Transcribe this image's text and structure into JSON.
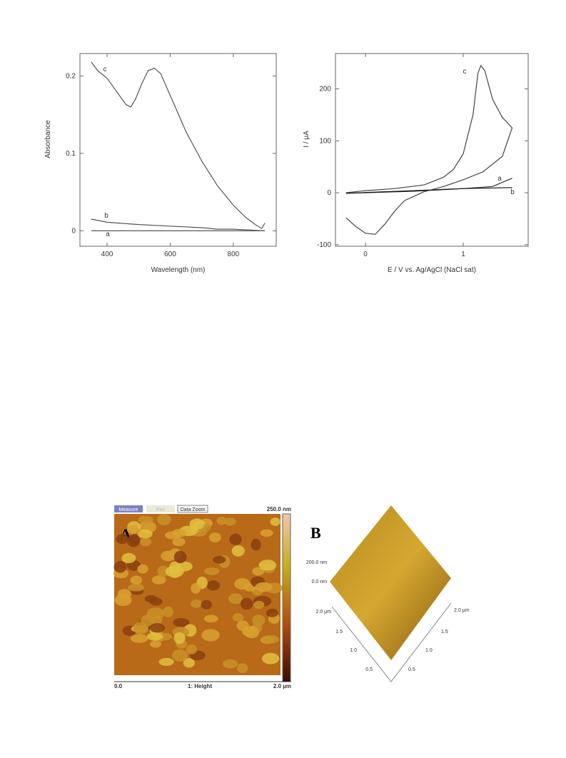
{
  "chart_data": [
    {
      "type": "line",
      "x_label": "Wavelength (nm)",
      "y_label": "Absorbance",
      "xlim": [
        314,
        936
      ],
      "ylim": [
        -0.02,
        0.229
      ],
      "xticks": [
        400,
        600,
        800
      ],
      "yticks": [
        0,
        0.1,
        0.2
      ],
      "series": [
        {
          "name": "a",
          "color": "#444444",
          "x": [
            350,
            900
          ],
          "values": [
            0,
            0
          ]
        },
        {
          "name": "b",
          "color": "#555555",
          "x": [
            350,
            400,
            500,
            600,
            700,
            750,
            800,
            850,
            900
          ],
          "values": [
            0.015,
            0.011,
            0.008,
            0.006,
            0.004,
            0.002,
            0.002,
            0.001,
            0
          ]
        },
        {
          "name": "c",
          "color": "#555555",
          "x": [
            350,
            370,
            400,
            430,
            460,
            475,
            490,
            510,
            530,
            550,
            570,
            600,
            650,
            700,
            750,
            800,
            840,
            870,
            890,
            900
          ],
          "values": [
            0.218,
            0.207,
            0.197,
            0.18,
            0.163,
            0.16,
            0.17,
            0.19,
            0.207,
            0.21,
            0.203,
            0.175,
            0.128,
            0.09,
            0.058,
            0.033,
            0.017,
            0.008,
            0.003,
            0.01
          ]
        }
      ]
    },
    {
      "type": "line",
      "x_label": "E / V vs. Ag/AgCl (NaCl sat)",
      "y_label": "I / μA",
      "xlim": [
        -0.307,
        1.664
      ],
      "ylim": [
        -103,
        268
      ],
      "xticks": [
        0,
        1
      ],
      "yticks": [
        -100,
        0,
        100,
        200
      ],
      "series": [
        {
          "name": "a",
          "color": "#333333",
          "x": [
            -0.2,
            0.5,
            1.0,
            1.3,
            1.5
          ],
          "values": [
            -1,
            3,
            8,
            12,
            28
          ]
        },
        {
          "name": "b",
          "color": "#111111",
          "x": [
            -0.2,
            0.5,
            1.0,
            1.5
          ],
          "values": [
            -1,
            4,
            8,
            10
          ]
        },
        {
          "name": "c",
          "color": "#444444",
          "x": [
            -0.2,
            0,
            0.3,
            0.6,
            0.8,
            0.9,
            1.0,
            1.1,
            1.15,
            1.18,
            1.22,
            1.3,
            1.4,
            1.5,
            1.5,
            1.4,
            1.2,
            1.0,
            0.8,
            0.6,
            0.4,
            0.3,
            0.2,
            0.1,
            0,
            -0.1,
            -0.2
          ],
          "values": [
            0,
            4,
            8,
            15,
            30,
            45,
            75,
            150,
            230,
            245,
            235,
            180,
            145,
            125,
            125,
            70,
            40,
            25,
            12,
            2,
            -15,
            -35,
            -60,
            -80,
            -78,
            -65,
            -48
          ]
        }
      ]
    }
  ],
  "afm_a": {
    "toolbar": [
      "Measure",
      "Pan",
      "Data Zoom"
    ],
    "scale": "250.0 nm",
    "panel": "A",
    "x_start": "0.0",
    "channel": "1: Height",
    "x_end": "2.0 µm"
  },
  "afm_b": {
    "panel": "B",
    "z_top": "200.0 nm",
    "z_bottom": "0.0 nm",
    "left_axis": [
      "2.0 µm",
      "1.5",
      "1.0",
      "0.5"
    ],
    "right_axis": [
      "2.0 µm",
      "1.5",
      "1.0",
      "0.5"
    ]
  }
}
